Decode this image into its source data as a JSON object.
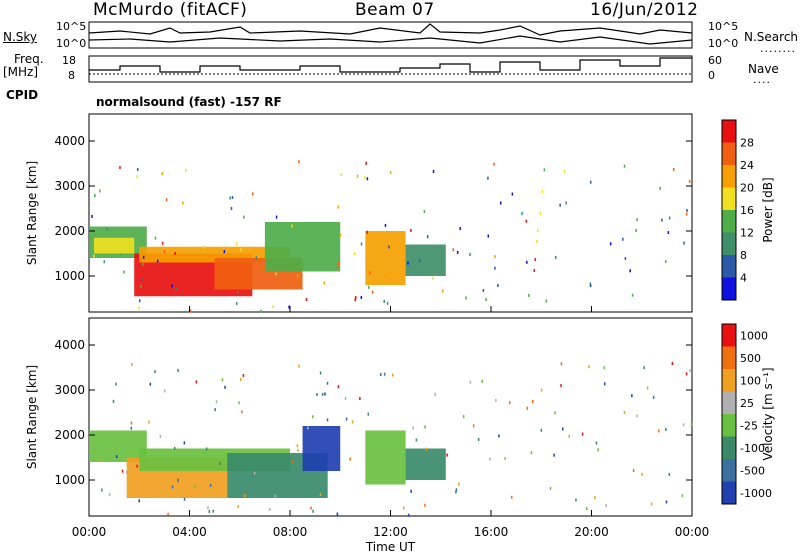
{
  "header": {
    "station": "McMurdo (fitACF)",
    "beam": "Beam 07",
    "date": "16/Jun/2012"
  },
  "side_labels": {
    "nsky": "N.Sky",
    "nsearch": "N.Search",
    "freq": "Freq.",
    "freq_unit": "[MHz]",
    "nave": "Nave",
    "cpid": "CPID",
    "cpid_value": "normalsound (fast) -157 RF"
  },
  "noise_panel": {
    "left_ticks": [
      "10^5",
      "10^0"
    ],
    "right_ticks": [
      "10^5",
      "10^0"
    ]
  },
  "freq_panel": {
    "left_ticks": [
      "18",
      "8"
    ],
    "right_ticks": [
      "60",
      "0"
    ]
  },
  "chart_data": [
    {
      "type": "heatmap",
      "title": "",
      "xlabel": "",
      "ylabel": "Slant Range [km]",
      "yticks": [
        "1000",
        "2000",
        "3000",
        "4000"
      ],
      "ylim": [
        200,
        4600
      ],
      "xlim": [
        0,
        24
      ],
      "colorbar": {
        "label": "Power [dB]",
        "ticks": [
          "4",
          "8",
          "12",
          "16",
          "20",
          "24",
          "28"
        ],
        "colors": [
          "#1010e0",
          "#2c5aa8",
          "#3f8f6a",
          "#4fae4a",
          "#f0e020",
          "#f5a000",
          "#f06010",
          "#e81010"
        ]
      },
      "regions": [
        {
          "t0": 0.0,
          "t1": 2.3,
          "r0": 1400,
          "r1": 2100,
          "level": 3
        },
        {
          "t0": 0.2,
          "t1": 1.8,
          "r0": 1500,
          "r1": 1850,
          "level": 4
        },
        {
          "t0": 1.8,
          "t1": 6.5,
          "r0": 550,
          "r1": 1500,
          "level": 7
        },
        {
          "t0": 2.0,
          "t1": 8.0,
          "r0": 1300,
          "r1": 1650,
          "level": 5
        },
        {
          "t0": 5.0,
          "t1": 8.5,
          "r0": 700,
          "r1": 1400,
          "level": 6
        },
        {
          "t0": 7.0,
          "t1": 10.0,
          "r0": 1100,
          "r1": 2200,
          "level": 3
        },
        {
          "t0": 11.0,
          "t1": 12.6,
          "r0": 800,
          "r1": 2000,
          "level": 5
        },
        {
          "t0": 12.6,
          "t1": 14.2,
          "r0": 1000,
          "r1": 1700,
          "level": 2
        }
      ]
    },
    {
      "type": "heatmap",
      "title": "",
      "xlabel": "Time UT",
      "ylabel": "Slant Range [km]",
      "xticks": [
        "00:00",
        "04:00",
        "08:00",
        "12:00",
        "16:00",
        "20:00",
        "00:00"
      ],
      "yticks": [
        "1000",
        "2000",
        "3000",
        "4000"
      ],
      "ylim": [
        200,
        4600
      ],
      "xlim": [
        0,
        24
      ],
      "colorbar": {
        "label": "Velocity [m s⁻¹]",
        "ticks": [
          "1000",
          "500",
          "100",
          "25",
          "-25",
          "-100",
          "-500",
          "-1000"
        ],
        "colors": [
          "#2040b0",
          "#3a6fa0",
          "#3a8a6a",
          "#6ac040",
          "#b0b0b0",
          "#f0a020",
          "#f07010",
          "#e81010"
        ]
      },
      "regions": [
        {
          "t0": 0.0,
          "t1": 2.3,
          "r0": 1400,
          "r1": 2100,
          "level": 3
        },
        {
          "t0": 1.5,
          "t1": 5.5,
          "r0": 600,
          "r1": 1500,
          "level": 5
        },
        {
          "t0": 2.0,
          "t1": 8.0,
          "r0": 1200,
          "r1": 1700,
          "level": 3
        },
        {
          "t0": 5.5,
          "t1": 9.5,
          "r0": 600,
          "r1": 1600,
          "level": 2
        },
        {
          "t0": 8.5,
          "t1": 10.0,
          "r0": 1200,
          "r1": 2200,
          "level": 0
        },
        {
          "t0": 11.0,
          "t1": 12.6,
          "r0": 900,
          "r1": 2100,
          "level": 3
        },
        {
          "t0": 12.6,
          "t1": 14.2,
          "r0": 1000,
          "r1": 1700,
          "level": 2
        }
      ]
    }
  ]
}
